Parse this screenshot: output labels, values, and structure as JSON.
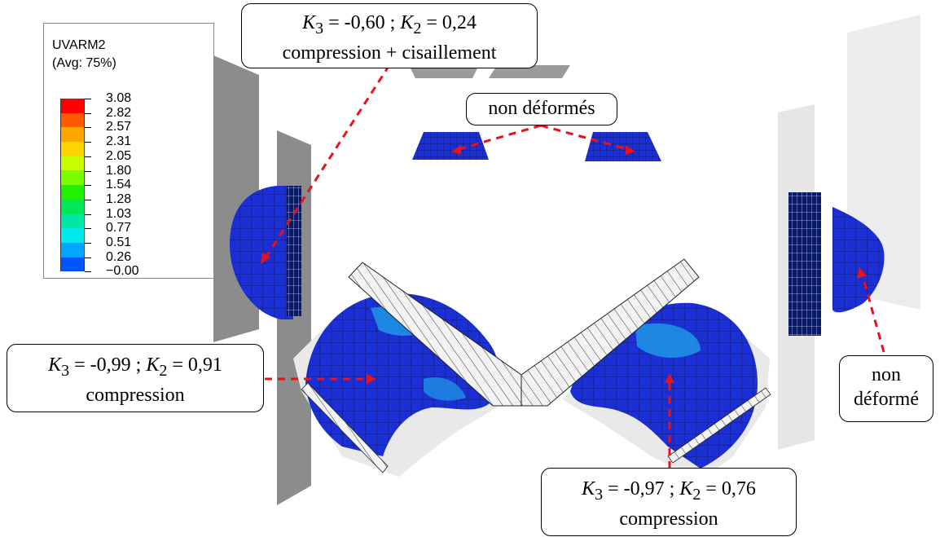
{
  "legend": {
    "variable": "UVARM2",
    "averaging": "(Avg: 75%)",
    "levels": [
      "3.08",
      "2.82",
      "2.57",
      "2.31",
      "2.05",
      "1.80",
      "1.54",
      "1.28",
      "1.03",
      "0.77",
      "0.51",
      "0.26",
      "−0.00"
    ],
    "colors": [
      "#ff0000",
      "#ff5a00",
      "#ffa600",
      "#ffd400",
      "#c8ff00",
      "#7aff00",
      "#22f000",
      "#00e85a",
      "#00e8a6",
      "#00e8e8",
      "#00a6ff",
      "#0055ff",
      "#0000ff"
    ]
  },
  "colors": {
    "mesh_blue": "#1a2fd6",
    "mesh_light_blue": "#1f9de6",
    "arrow_red": "#e8121a",
    "plate_gray": "#8c8c8c",
    "plate_light": "#e6e6e6"
  },
  "callouts": {
    "top": {
      "line1_k3": "K",
      "line1_k3_sub": "3",
      "line1_v3": " = -0,60 ; ",
      "line1_k2": "K",
      "line1_k2_sub": "2",
      "line1_v2": " = 0,24",
      "line2": "compression + cisaillement"
    },
    "non_deformes": "non déformés",
    "left": {
      "line1_k3": "K",
      "line1_k3_sub": "3",
      "line1_v3": " = -0,99 ; ",
      "line1_k2": "K",
      "line1_k2_sub": "2",
      "line1_v2": " = 0,91",
      "line2": "compression"
    },
    "bottom": {
      "line1_k3": "K",
      "line1_k3_sub": "3",
      "line1_v3": " = -0,97 ; ",
      "line1_k2": "K",
      "line1_k2_sub": "2",
      "line1_v2": " = 0,76",
      "line2": "compression"
    },
    "right": {
      "line1": "non",
      "line2": "déformé"
    }
  }
}
